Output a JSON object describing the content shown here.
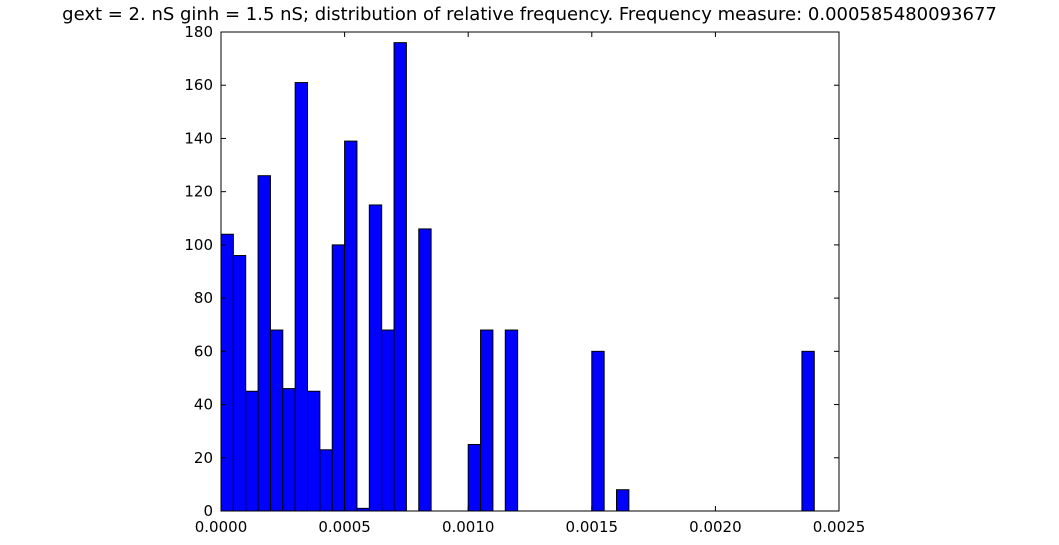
{
  "chart_data": {
    "type": "bar",
    "title": "gext = 2. nS ginh = 1.5 nS; distribution of relative frequency. Frequency measure: 0.000585480093677",
    "xlabel": "",
    "ylabel": "",
    "xlim": [
      0.0,
      0.0025
    ],
    "ylim": [
      0,
      180
    ],
    "xticks": [
      "0.0000",
      "0.0005",
      "0.0010",
      "0.0015",
      "0.0020",
      "0.0025"
    ],
    "yticks": [
      "0",
      "20",
      "40",
      "60",
      "80",
      "100",
      "120",
      "140",
      "160",
      "180"
    ],
    "grid": false,
    "bar_color": "#0000ff",
    "bars": [
      {
        "x0": 0.0,
        "x1": 5e-05,
        "value": 104
      },
      {
        "x0": 5e-05,
        "x1": 0.0001,
        "value": 96
      },
      {
        "x0": 0.0001,
        "x1": 0.00015,
        "value": 45
      },
      {
        "x0": 0.00015,
        "x1": 0.0002,
        "value": 126
      },
      {
        "x0": 0.0002,
        "x1": 0.00025,
        "value": 68
      },
      {
        "x0": 0.00025,
        "x1": 0.0003,
        "value": 46
      },
      {
        "x0": 0.0003,
        "x1": 0.00035,
        "value": 161
      },
      {
        "x0": 0.00035,
        "x1": 0.0004,
        "value": 45
      },
      {
        "x0": 0.0004,
        "x1": 0.00045,
        "value": 23
      },
      {
        "x0": 0.00045,
        "x1": 0.0005,
        "value": 100
      },
      {
        "x0": 0.0005,
        "x1": 0.00055,
        "value": 139
      },
      {
        "x0": 0.00055,
        "x1": 0.0006,
        "value": 1
      },
      {
        "x0": 0.0006,
        "x1": 0.00065,
        "value": 115
      },
      {
        "x0": 0.00065,
        "x1": 0.0007,
        "value": 68
      },
      {
        "x0": 0.0007,
        "x1": 0.00075,
        "value": 176
      },
      {
        "x0": 0.0008,
        "x1": 0.00085,
        "value": 106
      },
      {
        "x0": 0.001,
        "x1": 0.00105,
        "value": 25
      },
      {
        "x0": 0.00105,
        "x1": 0.0011,
        "value": 68
      },
      {
        "x0": 0.00115,
        "x1": 0.0012,
        "value": 68
      },
      {
        "x0": 0.0015,
        "x1": 0.00155,
        "value": 60
      },
      {
        "x0": 0.0016,
        "x1": 0.00165,
        "value": 8
      },
      {
        "x0": 0.00235,
        "x1": 0.0024,
        "value": 60
      }
    ]
  }
}
